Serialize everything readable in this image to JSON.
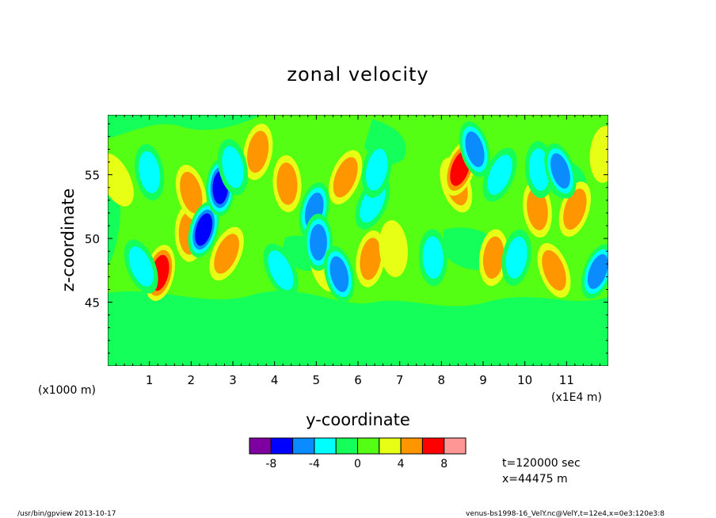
{
  "chart_data": {
    "type": "heatmap",
    "title": "zonal velocity",
    "xlabel": "y-coordinate",
    "ylabel": "z-coordinate",
    "x_scale_note": "(x1000 m)",
    "x_unit_note": "(x1E4 m)",
    "xlim": [
      0,
      12
    ],
    "ylim": [
      40,
      59.7
    ],
    "x_ticks": [
      "1",
      "2",
      "3",
      "4",
      "5",
      "6",
      "7",
      "8",
      "9",
      "10",
      "11"
    ],
    "y_ticks": [
      "45",
      "50",
      "55"
    ],
    "colorbar": {
      "levels": [
        -10,
        -8,
        -6,
        -4,
        -2,
        0,
        2,
        4,
        6,
        8,
        10
      ],
      "tick_labels": [
        "-8",
        "-4",
        "0",
        "4",
        "8"
      ],
      "colors": [
        "#7f00a0",
        "#0000ff",
        "#0a8cff",
        "#00ffff",
        "#14ff5a",
        "#55ff14",
        "#e6ff14",
        "#ff9600",
        "#ff0000",
        "#ff9696"
      ]
    },
    "features": [
      {
        "label": "+",
        "y": 0.2,
        "z": 54.6,
        "value": 4.2
      },
      {
        "label": "+",
        "y": 1.25,
        "z": 47.3,
        "value": 6.5
      },
      {
        "label": "+",
        "y": 1.95,
        "z": 50.4,
        "value": 6.4
      },
      {
        "label": "+",
        "y": 2.0,
        "z": 53.6,
        "value": 4.8
      },
      {
        "label": "+",
        "y": 2.85,
        "z": 48.8,
        "value": 4.6
      },
      {
        "label": "+",
        "y": 3.6,
        "z": 56.8,
        "value": 5.0
      },
      {
        "label": "+",
        "y": 4.3,
        "z": 54.3,
        "value": 4.8
      },
      {
        "label": "+",
        "y": 5.2,
        "z": 48.0,
        "value": 4.0
      },
      {
        "label": "+",
        "y": 5.7,
        "z": 54.8,
        "value": 4.6
      },
      {
        "label": "+",
        "y": 6.3,
        "z": 48.4,
        "value": 6.2
      },
      {
        "label": "+",
        "y": 6.85,
        "z": 49.2,
        "value": 4.2
      },
      {
        "label": "+",
        "y": 8.35,
        "z": 54.2,
        "value": 5.2
      },
      {
        "label": "+",
        "y": 8.45,
        "z": 55.5,
        "value": 7.0
      },
      {
        "label": "+",
        "y": 9.25,
        "z": 48.5,
        "value": 4.5
      },
      {
        "label": "+",
        "y": 10.3,
        "z": 52.3,
        "value": 6.4
      },
      {
        "label": "+",
        "y": 10.7,
        "z": 47.5,
        "value": 6.0
      },
      {
        "label": "+",
        "y": 11.2,
        "z": 52.3,
        "value": 6.2
      },
      {
        "label": "+",
        "y": 11.9,
        "z": 56.6,
        "value": 4.0
      },
      {
        "label": "-",
        "y": 1.0,
        "z": 55.2,
        "value": -4.2
      },
      {
        "label": "-",
        "y": 0.8,
        "z": 47.8,
        "value": -3.8
      },
      {
        "label": "-",
        "y": 2.3,
        "z": 50.7,
        "value": -6.5
      },
      {
        "label": "-",
        "y": 2.7,
        "z": 54.0,
        "value": -7.0
      },
      {
        "label": "-",
        "y": 3.0,
        "z": 55.6,
        "value": -3.6
      },
      {
        "label": "-",
        "y": 4.15,
        "z": 47.5,
        "value": -4.2
      },
      {
        "label": "-",
        "y": 4.95,
        "z": 52.2,
        "value": -5.6
      },
      {
        "label": "-",
        "y": 5.05,
        "z": 49.7,
        "value": -5.4
      },
      {
        "label": "-",
        "y": 5.55,
        "z": 47.2,
        "value": -5.6
      },
      {
        "label": "-",
        "y": 6.35,
        "z": 52.8,
        "value": -4.4
      },
      {
        "label": "-",
        "y": 6.45,
        "z": 55.4,
        "value": -3.6
      },
      {
        "label": "-",
        "y": 7.8,
        "z": 48.5,
        "value": -3.6
      },
      {
        "label": "-",
        "y": 8.8,
        "z": 57.0,
        "value": -6.0
      },
      {
        "label": "-",
        "y": 9.4,
        "z": 55.0,
        "value": -4.0
      },
      {
        "label": "-",
        "y": 9.8,
        "z": 48.5,
        "value": -3.5
      },
      {
        "label": "-",
        "y": 10.35,
        "z": 55.4,
        "value": -4.0
      },
      {
        "label": "-",
        "y": 10.85,
        "z": 55.3,
        "value": -5.4
      },
      {
        "label": "-",
        "y": 11.75,
        "z": 47.4,
        "value": -5.8
      }
    ]
  },
  "header": {
    "title": "zonal velocity"
  },
  "axes": {
    "xlabel": "y-coordinate",
    "ylabel": "z-coordinate",
    "x_scale_note": "(x1000 m)",
    "x_unit_note": "(x1E4 m)"
  },
  "info": {
    "time": "t=120000 sec",
    "position": "x=44475 m"
  },
  "footer": {
    "program": "/usr/bin/gpview  2013-10-17",
    "source": "venus-bs1998-16_VelY.nc@VelY,t=12e4,x=0e3:120e3:8"
  }
}
